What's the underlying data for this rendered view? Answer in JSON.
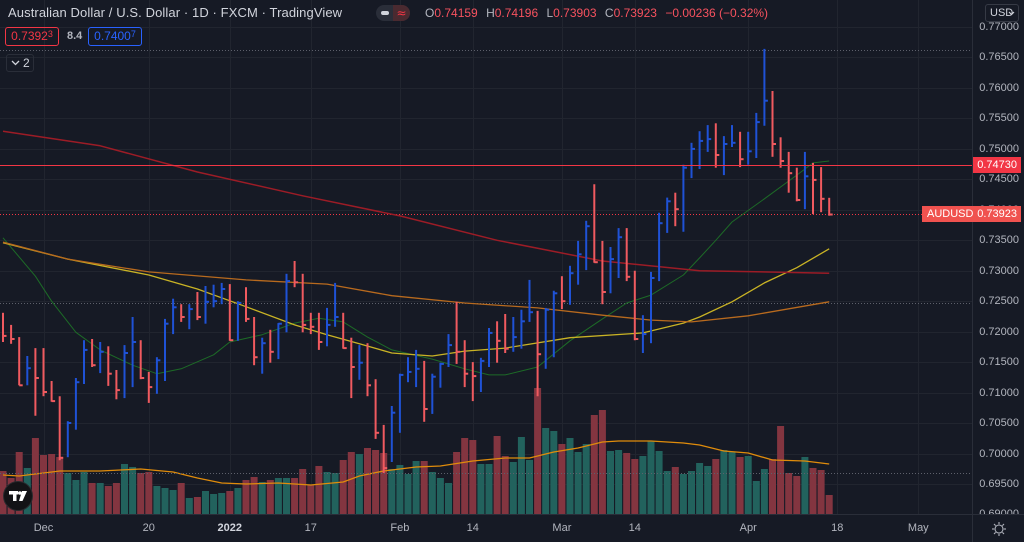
{
  "header": {
    "title": "Australian Dollar / U.S. Dollar · 1D · FXCM · TradingView",
    "ohlc": {
      "open_label": "O",
      "open": "0.74159",
      "high_label": "H",
      "high": "0.74196",
      "low_label": "L",
      "low": "0.73903",
      "close_label": "C",
      "close": "0.73923",
      "change": "−0.00236 (−0.32%)"
    }
  },
  "toggle": {
    "left_icon": "minus-icon",
    "right_icon": "≈"
  },
  "trade": {
    "sell_price": "0.7392",
    "sell_price_sup": "3",
    "spread": "8.4",
    "buy_price": "0.7400",
    "buy_price_sup": "7"
  },
  "indicators_collapse": {
    "count": "2"
  },
  "currency": {
    "label": "USD"
  },
  "price_tags": [
    {
      "label": "",
      "value": "0.74730",
      "price": 0.7473,
      "color": "#f23645"
    },
    {
      "label": "AUDUSD",
      "value": "0.73923",
      "price": 0.73923,
      "color": "#f0524f"
    }
  ],
  "chart_data": {
    "type": "ohlc",
    "title": "Australian Dollar / U.S. Dollar · 1D · FXCM",
    "symbol": "AUDUSD",
    "xlabel": "",
    "ylabel": "",
    "ylim": [
      0.69,
      0.77
    ],
    "grid": true,
    "bar_format": [
      "high",
      "low",
      "close",
      "up"
    ],
    "bars": [
      [
        0.7231,
        0.7183,
        0.7193,
        0
      ],
      [
        0.7211,
        0.718,
        0.7188,
        0
      ],
      [
        0.7191,
        0.7112,
        0.7112,
        0
      ],
      [
        0.716,
        0.7112,
        0.714,
        1
      ],
      [
        0.7173,
        0.7062,
        0.7124,
        0
      ],
      [
        0.7173,
        0.7094,
        0.7101,
        0
      ],
      [
        0.7119,
        0.7085,
        0.7086,
        0
      ],
      [
        0.7094,
        0.6989,
        0.6993,
        0
      ],
      [
        0.7053,
        0.6994,
        0.705,
        1
      ],
      [
        0.7124,
        0.7039,
        0.7117,
        1
      ],
      [
        0.7186,
        0.7114,
        0.717,
        1
      ],
      [
        0.7188,
        0.7142,
        0.7145,
        0
      ],
      [
        0.7183,
        0.7132,
        0.7167,
        1
      ],
      [
        0.7176,
        0.7111,
        0.7131,
        0
      ],
      [
        0.7137,
        0.7089,
        0.7104,
        0
      ],
      [
        0.7178,
        0.7091,
        0.7165,
        1
      ],
      [
        0.7224,
        0.7109,
        0.7183,
        1
      ],
      [
        0.7186,
        0.7122,
        0.7124,
        0
      ],
      [
        0.7134,
        0.7083,
        0.7109,
        0
      ],
      [
        0.7158,
        0.7098,
        0.7153,
        1
      ],
      [
        0.7221,
        0.7119,
        0.7213,
        1
      ],
      [
        0.7254,
        0.7196,
        0.724,
        1
      ],
      [
        0.7245,
        0.7216,
        0.7224,
        0
      ],
      [
        0.7245,
        0.7204,
        0.7237,
        1
      ],
      [
        0.7265,
        0.7219,
        0.7224,
        0
      ],
      [
        0.7275,
        0.7213,
        0.7249,
        1
      ],
      [
        0.7277,
        0.724,
        0.725,
        1
      ],
      [
        0.728,
        0.7245,
        0.727,
        1
      ],
      [
        0.7278,
        0.7185,
        0.7186,
        0
      ],
      [
        0.725,
        0.7185,
        0.7247,
        1
      ],
      [
        0.7273,
        0.7216,
        0.7221,
        0
      ],
      [
        0.7224,
        0.7145,
        0.7158,
        0
      ],
      [
        0.719,
        0.7131,
        0.7181,
        1
      ],
      [
        0.7203,
        0.7149,
        0.7167,
        0
      ],
      [
        0.7214,
        0.7155,
        0.7213,
        1
      ],
      [
        0.7295,
        0.7199,
        0.7283,
        1
      ],
      [
        0.7316,
        0.7273,
        0.7281,
        0
      ],
      [
        0.7295,
        0.7199,
        0.7211,
        0
      ],
      [
        0.7231,
        0.7196,
        0.7208,
        0
      ],
      [
        0.7231,
        0.717,
        0.7183,
        0
      ],
      [
        0.7239,
        0.7176,
        0.7211,
        1
      ],
      [
        0.728,
        0.7208,
        0.7224,
        1
      ],
      [
        0.7231,
        0.7172,
        0.7173,
        0
      ],
      [
        0.719,
        0.7091,
        0.7142,
        0
      ],
      [
        0.7178,
        0.7121,
        0.7149,
        1
      ],
      [
        0.7181,
        0.7094,
        0.7112,
        0
      ],
      [
        0.7122,
        0.7024,
        0.7034,
        0
      ],
      [
        0.7047,
        0.6968,
        0.6976,
        0
      ],
      [
        0.7078,
        0.6986,
        0.7067,
        1
      ],
      [
        0.7131,
        0.7034,
        0.7129,
        1
      ],
      [
        0.7158,
        0.7117,
        0.7134,
        1
      ],
      [
        0.717,
        0.7109,
        0.7139,
        1
      ],
      [
        0.7152,
        0.7052,
        0.7073,
        0
      ],
      [
        0.7131,
        0.7065,
        0.7126,
        1
      ],
      [
        0.7149,
        0.7108,
        0.7147,
        1
      ],
      [
        0.7196,
        0.7142,
        0.7178,
        1
      ],
      [
        0.7249,
        0.7147,
        0.7167,
        0
      ],
      [
        0.7186,
        0.7109,
        0.7131,
        0
      ],
      [
        0.715,
        0.7086,
        0.7127,
        0
      ],
      [
        0.7157,
        0.7101,
        0.7152,
        1
      ],
      [
        0.7206,
        0.7142,
        0.7198,
        1
      ],
      [
        0.7217,
        0.7149,
        0.7185,
        0
      ],
      [
        0.7229,
        0.7165,
        0.7172,
        0
      ],
      [
        0.7224,
        0.7167,
        0.7191,
        1
      ],
      [
        0.7236,
        0.7172,
        0.7217,
        1
      ],
      [
        0.7285,
        0.7216,
        0.7232,
        1
      ],
      [
        0.7234,
        0.7094,
        0.7163,
        0
      ],
      [
        0.7239,
        0.7139,
        0.7236,
        1
      ],
      [
        0.7267,
        0.7158,
        0.7263,
        1
      ],
      [
        0.7291,
        0.7237,
        0.725,
        0
      ],
      [
        0.7308,
        0.7244,
        0.7296,
        1
      ],
      [
        0.7349,
        0.7277,
        0.7327,
        1
      ],
      [
        0.7382,
        0.7301,
        0.7373,
        1
      ],
      [
        0.7442,
        0.7313,
        0.7314,
        0
      ],
      [
        0.7349,
        0.7245,
        0.7265,
        0
      ],
      [
        0.7339,
        0.7263,
        0.7319,
        1
      ],
      [
        0.737,
        0.7288,
        0.7355,
        1
      ],
      [
        0.737,
        0.7283,
        0.729,
        0
      ],
      [
        0.73,
        0.7186,
        0.7188,
        0
      ],
      [
        0.7227,
        0.7165,
        0.7196,
        1
      ],
      [
        0.7298,
        0.7181,
        0.7288,
        1
      ],
      [
        0.7395,
        0.7283,
        0.7378,
        1
      ],
      [
        0.742,
        0.7362,
        0.7414,
        1
      ],
      [
        0.7428,
        0.7373,
        0.7401,
        0
      ],
      [
        0.7474,
        0.7364,
        0.7469,
        1
      ],
      [
        0.751,
        0.7452,
        0.75,
        1
      ],
      [
        0.7529,
        0.7467,
        0.7513,
        1
      ],
      [
        0.7539,
        0.7495,
        0.7516,
        1
      ],
      [
        0.7542,
        0.7469,
        0.749,
        0
      ],
      [
        0.7521,
        0.7457,
        0.7508,
        1
      ],
      [
        0.7539,
        0.7503,
        0.751,
        1
      ],
      [
        0.7528,
        0.747,
        0.7483,
        0
      ],
      [
        0.7528,
        0.7474,
        0.7496,
        1
      ],
      [
        0.7559,
        0.7485,
        0.7544,
        1
      ],
      [
        0.7664,
        0.7538,
        0.7579,
        1
      ],
      [
        0.7595,
        0.7487,
        0.7508,
        0
      ],
      [
        0.7519,
        0.7469,
        0.748,
        0
      ],
      [
        0.7495,
        0.7428,
        0.746,
        0
      ],
      [
        0.7469,
        0.7414,
        0.7416,
        0
      ],
      [
        0.7495,
        0.7401,
        0.7455,
        1
      ],
      [
        0.7477,
        0.7393,
        0.7449,
        0
      ],
      [
        0.747,
        0.7396,
        0.7418,
        0
      ],
      [
        0.74196,
        0.73903,
        0.73923,
        0
      ]
    ],
    "volume": [
      43,
      36,
      62,
      46,
      76,
      59,
      60,
      57,
      41,
      34,
      42,
      31,
      31,
      28,
      31,
      50,
      47,
      41,
      42,
      28,
      26,
      24,
      31,
      16,
      17,
      23,
      20,
      21,
      23,
      26,
      34,
      37,
      32,
      34,
      36,
      36,
      36,
      45,
      29,
      48,
      42,
      41,
      54,
      62,
      60,
      66,
      64,
      61,
      45,
      49,
      40,
      53,
      53,
      42,
      36,
      31,
      62,
      76,
      74,
      50,
      50,
      78,
      58,
      52,
      77,
      54,
      126,
      86,
      83,
      70,
      76,
      62,
      70,
      99,
      104,
      63,
      64,
      61,
      55,
      58,
      73,
      63,
      43,
      47,
      40,
      43,
      51,
      48,
      55,
      64,
      62,
      57,
      58,
      33,
      45,
      55,
      88,
      41,
      38,
      57,
      46,
      44,
      19
    ],
    "moving_averages": [
      {
        "name": "MA (green)",
        "color": "#1d6b27",
        "width": 1,
        "points": [
          [
            0,
            0.7354
          ],
          [
            4,
            0.7291
          ],
          [
            6,
            0.725
          ],
          [
            9,
            0.7199
          ],
          [
            12,
            0.717
          ],
          [
            16,
            0.7145
          ],
          [
            19,
            0.7131
          ],
          [
            22,
            0.7139
          ],
          [
            26,
            0.7162
          ],
          [
            28,
            0.7183
          ],
          [
            32,
            0.7195
          ],
          [
            36,
            0.7214
          ],
          [
            39,
            0.7222
          ],
          [
            42,
            0.7216
          ],
          [
            45,
            0.7191
          ],
          [
            48,
            0.717
          ],
          [
            53,
            0.7155
          ],
          [
            57,
            0.7139
          ],
          [
            60,
            0.7129
          ],
          [
            62,
            0.7129
          ],
          [
            66,
            0.7142
          ],
          [
            70,
            0.7185
          ],
          [
            74,
            0.7221
          ],
          [
            77,
            0.7247
          ],
          [
            80,
            0.726
          ],
          [
            84,
            0.7293
          ],
          [
            86,
            0.7321
          ],
          [
            88,
            0.735
          ],
          [
            90,
            0.738
          ],
          [
            94,
            0.7418
          ],
          [
            98,
            0.7457
          ],
          [
            100,
            0.7477
          ],
          [
            102,
            0.748
          ]
        ]
      },
      {
        "name": "MA (yellow)",
        "color": "#c9b325",
        "width": 1.3,
        "points": [
          [
            0,
            0.7346
          ],
          [
            8,
            0.7319
          ],
          [
            18,
            0.7293
          ],
          [
            24,
            0.727
          ],
          [
            30,
            0.7241
          ],
          [
            36,
            0.7211
          ],
          [
            40,
            0.7195
          ],
          [
            44,
            0.718
          ],
          [
            48,
            0.7165
          ],
          [
            53,
            0.716
          ],
          [
            57,
            0.7168
          ],
          [
            62,
            0.7173
          ],
          [
            70,
            0.719
          ],
          [
            79,
            0.7198
          ],
          [
            84,
            0.7214
          ],
          [
            86,
            0.7224
          ],
          [
            90,
            0.7249
          ],
          [
            94,
            0.728
          ],
          [
            98,
            0.7305
          ],
          [
            102,
            0.7336
          ]
        ]
      },
      {
        "name": "MA (orange)",
        "color": "#b86a1e",
        "width": 1.3,
        "points": [
          [
            0,
            0.7347
          ],
          [
            8,
            0.7319
          ],
          [
            18,
            0.7298
          ],
          [
            30,
            0.7285
          ],
          [
            40,
            0.7278
          ],
          [
            48,
            0.7259
          ],
          [
            57,
            0.7247
          ],
          [
            66,
            0.7239
          ],
          [
            74,
            0.7227
          ],
          [
            80,
            0.7219
          ],
          [
            85,
            0.7216
          ],
          [
            92,
            0.7226
          ],
          [
            102,
            0.7249
          ]
        ]
      },
      {
        "name": "MA (dark red)",
        "color": "#9c1c26",
        "width": 1.5,
        "points": [
          [
            0,
            0.7529
          ],
          [
            12,
            0.7505
          ],
          [
            24,
            0.7462
          ],
          [
            37,
            0.7423
          ],
          [
            49,
            0.739
          ],
          [
            61,
            0.735
          ],
          [
            74,
            0.7316
          ],
          [
            86,
            0.73
          ],
          [
            102,
            0.7296
          ]
        ]
      }
    ],
    "volume_ma": {
      "color": "#e08c0b",
      "points": [
        [
          0,
          39
        ],
        [
          2,
          38
        ],
        [
          5,
          41
        ],
        [
          7,
          43
        ],
        [
          12,
          43
        ],
        [
          17,
          45
        ],
        [
          21,
          42
        ],
        [
          24,
          36
        ],
        [
          27,
          31
        ],
        [
          30,
          30
        ],
        [
          34,
          31
        ],
        [
          38,
          29
        ],
        [
          42,
          32
        ],
        [
          44,
          38
        ],
        [
          47,
          43
        ],
        [
          51,
          47
        ],
        [
          54,
          48
        ],
        [
          58,
          53
        ],
        [
          62,
          56
        ],
        [
          65,
          56
        ],
        [
          68,
          62
        ],
        [
          71,
          66
        ],
        [
          74,
          72
        ],
        [
          76,
          73
        ],
        [
          80,
          73
        ],
        [
          84,
          71
        ],
        [
          86,
          69
        ],
        [
          89,
          63
        ],
        [
          92,
          61
        ],
        [
          95,
          54
        ],
        [
          99,
          53
        ],
        [
          102,
          50
        ]
      ]
    },
    "levels": [
      {
        "price": 0.7473,
        "style": "solid",
        "color": "#f23645"
      },
      {
        "price": 0.73923,
        "style": "dotted",
        "color": "#f23645"
      },
      {
        "price": 0.7662,
        "style": "dotted",
        "color": "#5d606b"
      },
      {
        "price": 0.7247,
        "style": "dotted",
        "color": "#5d606b"
      },
      {
        "price": 0.6968,
        "style": "dotted",
        "color": "#5d606b"
      }
    ],
    "x_ticks": [
      {
        "text": "Dec",
        "index": 5,
        "bold": false
      },
      {
        "text": "20",
        "index": 18,
        "bold": false
      },
      {
        "text": "2022",
        "index": 28,
        "bold": true
      },
      {
        "text": "17",
        "index": 38,
        "bold": false
      },
      {
        "text": "Feb",
        "index": 49,
        "bold": false
      },
      {
        "text": "14",
        "index": 58,
        "bold": false
      },
      {
        "text": "Mar",
        "index": 69,
        "bold": false
      },
      {
        "text": "14",
        "index": 78,
        "bold": false
      },
      {
        "text": "Apr",
        "index": 92,
        "bold": false
      },
      {
        "text": "18",
        "index": 103,
        "bold": false
      },
      {
        "text": "May",
        "index": 113,
        "bold": false
      }
    ],
    "y_ticks": [
      "0.77000",
      "0.76500",
      "0.76000",
      "0.75500",
      "0.75000",
      "0.74500",
      "0.74000",
      "0.73500",
      "0.73000",
      "0.72500",
      "0.72000",
      "0.71500",
      "0.71000",
      "0.70500",
      "0.70000",
      "0.69500",
      "0.69000"
    ],
    "colors": {
      "up": "#1f52d6",
      "down": "#f05a5f",
      "volume_up": "#22625d",
      "volume_down": "#833540",
      "grid": "#21252f"
    }
  }
}
